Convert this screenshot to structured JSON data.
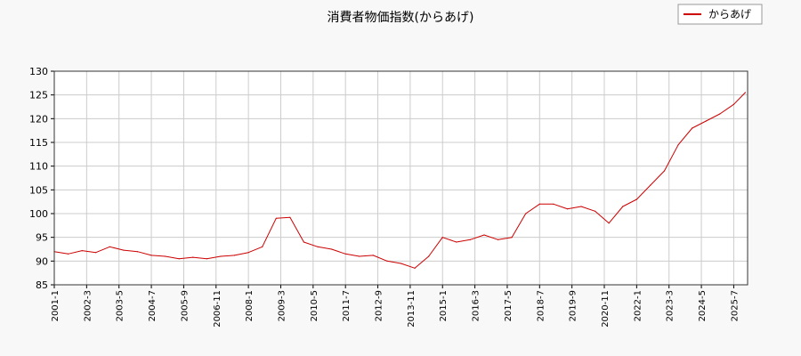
{
  "chart_data": {
    "type": "line",
    "title": "消費者物価指数(からあげ)",
    "xlabel": "",
    "ylabel": "",
    "ylim": [
      85,
      130
    ],
    "yticks": [
      85,
      90,
      95,
      100,
      105,
      110,
      115,
      120,
      125,
      130
    ],
    "xlim": [
      "2001-01",
      "2026-01"
    ],
    "xticks": [
      "2001-1",
      "2002-3",
      "2003-5",
      "2004-7",
      "2005-9",
      "2006-11",
      "2008-1",
      "2009-3",
      "2010-5",
      "2011-7",
      "2012-9",
      "2013-11",
      "2015-1",
      "2016-3",
      "2017-5",
      "2018-7",
      "2019-9",
      "2020-11",
      "2022-1",
      "2023-3",
      "2024-5",
      "2025-7"
    ],
    "grid": true,
    "legend": {
      "position": "top-right"
    },
    "colors": {
      "series": "#cc0000",
      "grid": "#cccccc",
      "background": "#ffffff",
      "page": "#f8f8f8"
    },
    "series": [
      {
        "name": "からあげ",
        "x": [
          "2001-01",
          "2001-07",
          "2002-01",
          "2002-07",
          "2003-01",
          "2003-07",
          "2004-01",
          "2004-07",
          "2005-01",
          "2005-07",
          "2006-01",
          "2006-07",
          "2007-01",
          "2007-07",
          "2008-01",
          "2008-07",
          "2009-01",
          "2009-07",
          "2010-01",
          "2010-07",
          "2011-01",
          "2011-07",
          "2012-01",
          "2012-07",
          "2013-01",
          "2013-07",
          "2014-01",
          "2014-07",
          "2015-01",
          "2015-07",
          "2016-01",
          "2016-07",
          "2017-01",
          "2017-07",
          "2018-01",
          "2018-07",
          "2019-01",
          "2019-07",
          "2020-01",
          "2020-07",
          "2021-01",
          "2021-07",
          "2022-01",
          "2022-07",
          "2023-01",
          "2023-07",
          "2024-01",
          "2024-07",
          "2025-01",
          "2025-07",
          "2025-12"
        ],
        "values": [
          92.0,
          91.5,
          92.2,
          91.8,
          93.0,
          92.3,
          92.0,
          91.2,
          91.0,
          90.5,
          90.8,
          90.5,
          91.0,
          91.2,
          91.8,
          93.0,
          99.0,
          99.2,
          94.0,
          93.0,
          92.5,
          91.5,
          91.0,
          91.2,
          90.0,
          89.5,
          88.5,
          91.0,
          95.0,
          94.0,
          94.5,
          95.5,
          94.5,
          95.0,
          100.0,
          102.0,
          102.0,
          101.0,
          101.5,
          100.5,
          98.0,
          101.5,
          103.0,
          106.0,
          109.0,
          114.5,
          118.0,
          119.5,
          121.0,
          123.0,
          125.5
        ]
      }
    ]
  }
}
